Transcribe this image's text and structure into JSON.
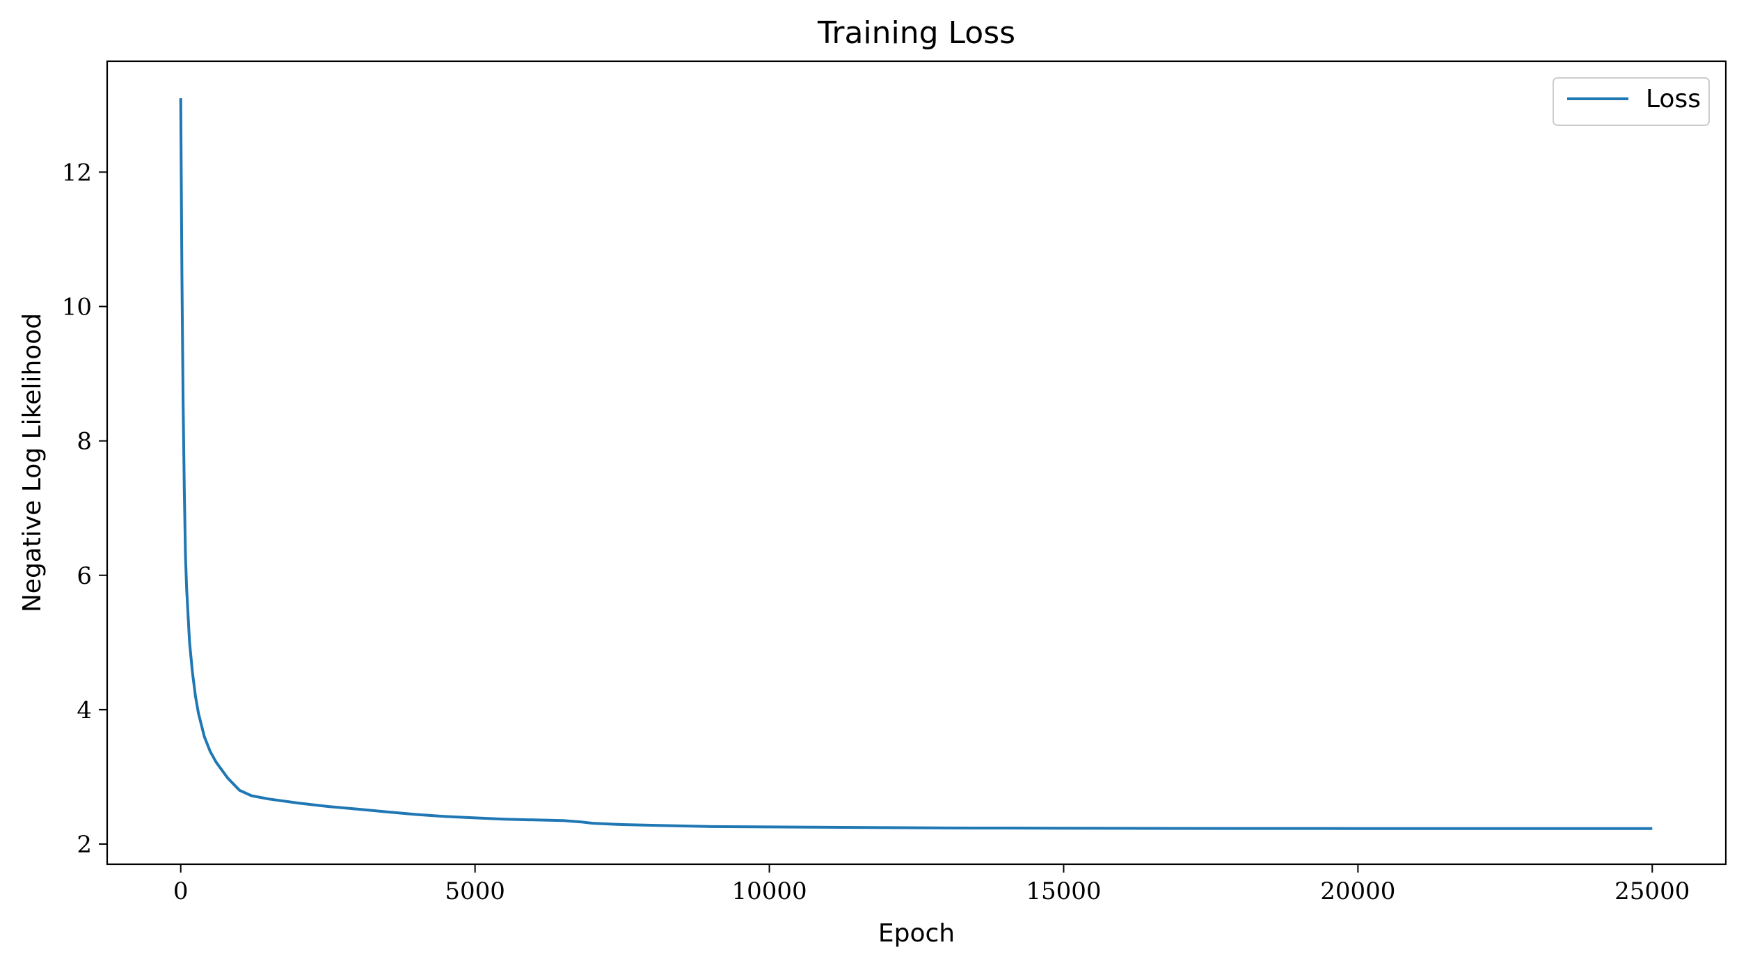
{
  "chart_data": {
    "type": "line",
    "title": "Training Loss",
    "xlabel": "Epoch",
    "ylabel": "Negative Log Likelihood",
    "xlim": [
      -1250,
      26250
    ],
    "ylim": [
      1.7,
      13.65
    ],
    "xticks": [
      0,
      5000,
      10000,
      15000,
      20000,
      25000
    ],
    "yticks": [
      2,
      4,
      6,
      8,
      10,
      12
    ],
    "grid": false,
    "legend_position": "top-right",
    "series": [
      {
        "name": "Loss",
        "color": "#1f77b4",
        "x": [
          0,
          20,
          40,
          60,
          80,
          100,
          150,
          200,
          250,
          300,
          400,
          500,
          600,
          800,
          1000,
          1200,
          1500,
          2000,
          2500,
          3000,
          3500,
          4000,
          4500,
          5000,
          5500,
          6000,
          6500,
          6800,
          7000,
          7500,
          8000,
          9000,
          10000,
          11000,
          12000,
          13000,
          14000,
          15000,
          16000,
          18000,
          20000,
          22000,
          24000,
          25000
        ],
        "y": [
          13.1,
          10.5,
          8.6,
          7.3,
          6.3,
          5.8,
          5.0,
          4.55,
          4.2,
          3.95,
          3.6,
          3.38,
          3.22,
          2.98,
          2.8,
          2.72,
          2.67,
          2.61,
          2.56,
          2.52,
          2.48,
          2.44,
          2.41,
          2.39,
          2.37,
          2.36,
          2.35,
          2.33,
          2.31,
          2.29,
          2.28,
          2.26,
          2.255,
          2.25,
          2.245,
          2.24,
          2.238,
          2.236,
          2.234,
          2.232,
          2.231,
          2.23,
          2.23,
          2.23
        ]
      }
    ]
  }
}
